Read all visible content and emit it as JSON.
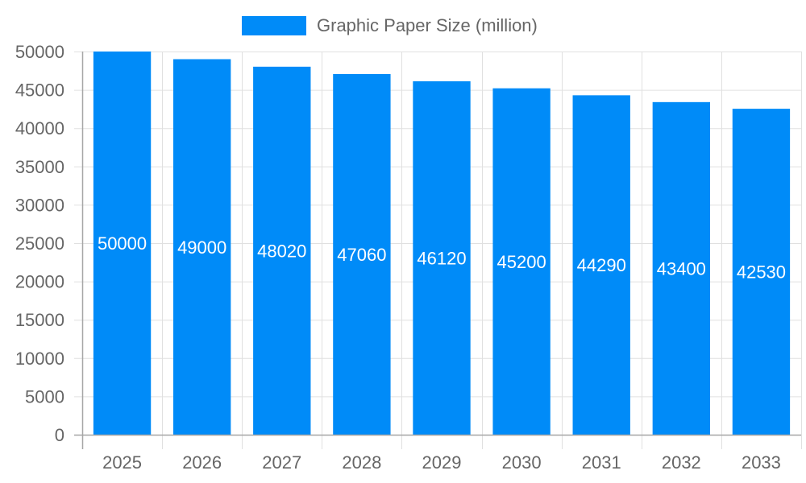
{
  "chart_data": {
    "type": "bar",
    "categories": [
      "2025",
      "2026",
      "2027",
      "2028",
      "2029",
      "2030",
      "2031",
      "2032",
      "2033"
    ],
    "series": [
      {
        "name": "Graphic Paper Size (million)",
        "color": "#008bf8",
        "values": [
          50000,
          49000,
          48020,
          47060,
          46120,
          45200,
          44290,
          43400,
          42530
        ],
        "data_labels": [
          "50000",
          "49000",
          "48020",
          "47060",
          "46120",
          "45200",
          "44290",
          "43400",
          "42530"
        ]
      }
    ],
    "ylim": [
      0,
      50000
    ],
    "yticks": [
      "0",
      "5000",
      "10000",
      "15000",
      "20000",
      "25000",
      "30000",
      "35000",
      "40000",
      "45000",
      "50000"
    ],
    "ytick_values": [
      0,
      5000,
      10000,
      15000,
      20000,
      25000,
      30000,
      35000,
      40000,
      45000,
      50000
    ],
    "grid": true,
    "legend_position": "top-center",
    "title": "",
    "xlabel": "",
    "ylabel": ""
  },
  "colors": {
    "bar": "#008bf8",
    "grid": "#e0e0e0",
    "axis": "#a6a6a6",
    "tick_text": "#666666",
    "data_label": "#ffffff"
  }
}
